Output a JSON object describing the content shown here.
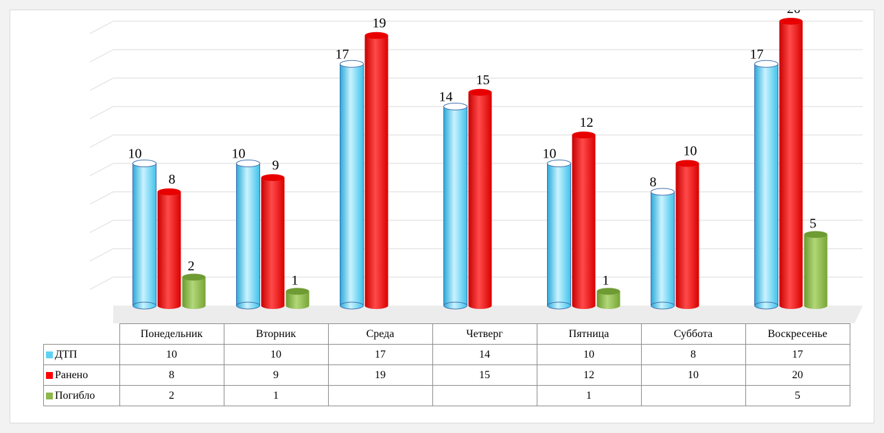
{
  "chart_data": {
    "type": "bar",
    "categories": [
      "Понедельник",
      "Вторник",
      "Среда",
      "Четверг",
      "Пятница",
      "Суббота",
      "Воскресенье"
    ],
    "series": [
      {
        "name": "ДТП",
        "values": [
          10,
          10,
          17,
          14,
          10,
          8,
          17
        ],
        "labels": [
          "10",
          "10",
          "17",
          "14",
          "10",
          "8",
          "17"
        ],
        "color": "#5fd2f2"
      },
      {
        "name": "Ранено",
        "values": [
          8,
          9,
          19,
          15,
          12,
          10,
          20
        ],
        "labels": [
          "8",
          "9",
          "19",
          "15",
          "12",
          "10",
          "20"
        ],
        "color": "#ff0000"
      },
      {
        "name": "Погибло",
        "values": [
          2,
          1,
          null,
          null,
          1,
          null,
          5
        ],
        "labels": [
          "2",
          "1",
          "",
          "",
          "1",
          "",
          "5"
        ],
        "color": "#8db84a"
      }
    ],
    "ylim": [
      0,
      20
    ],
    "grid": true,
    "legend": "in data table",
    "style": "3d-cylinder",
    "title": "",
    "xlabel": "",
    "ylabel": ""
  }
}
